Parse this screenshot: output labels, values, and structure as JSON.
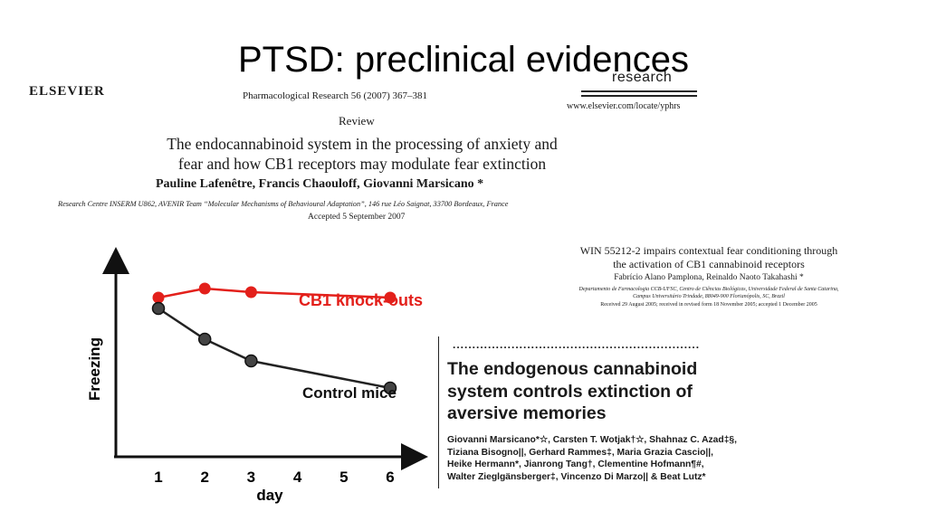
{
  "slide": {
    "title": "PTSD: preclinical evidences"
  },
  "paper1": {
    "publisher": "ELSEVIER",
    "journal": "Pharmacological Research 56 (2007) 367–381",
    "journal_logo_text": "research",
    "url": "www.elsevier.com/locate/yphrs",
    "type": "Review",
    "title_line1": "The endocannabinoid system in the processing of anxiety and",
    "title_line2": "fear and how CB1 receptors may modulate fear extinction",
    "authors": "Pauline Lafenêtre, Francis Chaouloff, Giovanni Marsicano *",
    "affiliation": "Research Centre INSERM U862, AVENIR Team “Molecular Mechanisms of Behavioural Adaptation”, 146 rue Léo Saignat, 33700 Bordeaux, France",
    "accepted": "Accepted 5 September 2007"
  },
  "paper2": {
    "title_line1": "WIN 55212-2 impairs contextual fear conditioning through",
    "title_line2": "the activation of CB1 cannabinoid receptors",
    "authors": "Fabrício Alano Pamplona, Reinaldo Naoto Takahashi *",
    "affil_line1": "Departamento de Farmacologia CCB-UFSC, Centro de Ciências Biológicas, Universidade Federal de Santa Catarina,",
    "affil_line2": "Campus Universitário Trindade, 88049-900 Florianópolis, SC, Brazil",
    "received": "Received 29 August 2005; received in revised form 18 November 2005; accepted 1 December 2005"
  },
  "paper3": {
    "dots": "...............................................................",
    "title_line1": "The endogenous cannabinoid",
    "title_line2": "system controls extinction of",
    "title_line3": "aversive memories",
    "authors_line1": "Giovanni Marsicano*☆, Carsten T. Wotjak†☆, Shahnaz C. Azad‡§,",
    "authors_line2": "Tiziana Bisogno||, Gerhard Rammes‡, Maria Grazia Cascio||,",
    "authors_line3": "Heike Hermann*, Jianrong Tang†, Clementine Hofmann¶#,",
    "authors_line4": "Walter Zieglgänsberger‡, Vincenzo Di Marzo|| & Beat Lutz*"
  },
  "chart_data": {
    "type": "line",
    "ylabel": "Freezing",
    "xlabel": "day",
    "x_ticks": [
      "1",
      "2",
      "3",
      "4",
      "5",
      "6"
    ],
    "series": [
      {
        "name": "CB1 knock-outs",
        "color": "#e3201b",
        "x": [
          1,
          2,
          3,
          6
        ],
        "y": [
          0.88,
          0.93,
          0.91,
          0.88
        ]
      },
      {
        "name": "Control mice",
        "color": "#222222",
        "x": [
          1,
          2,
          3,
          6
        ],
        "y": [
          0.82,
          0.65,
          0.53,
          0.38
        ]
      }
    ]
  }
}
